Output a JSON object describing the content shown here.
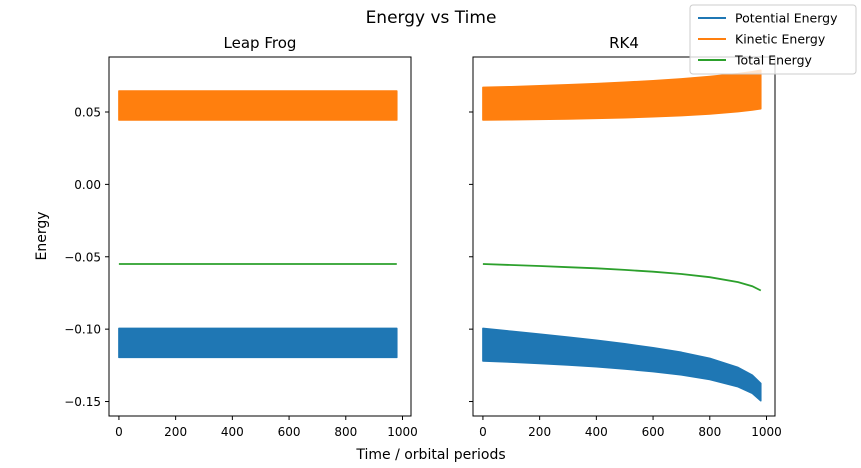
{
  "figure": {
    "suptitle": "Energy vs Time",
    "xlabel": "Time / orbital periods",
    "ylabel": "Energy"
  },
  "legend": {
    "placement": "top-right",
    "entries": [
      {
        "label": "Potential Energy",
        "color": "#1f77b4"
      },
      {
        "label": "Kinetic Energy",
        "color": "#ff7f0e"
      },
      {
        "label": "Total Energy",
        "color": "#2ca02c"
      }
    ]
  },
  "chart_data": [
    {
      "type": "area",
      "title": "Leap Frog",
      "xlabel": "",
      "ylabel": "Energy",
      "xlim": [
        -35,
        1030
      ],
      "ylim": [
        -0.16,
        0.088
      ],
      "xticks": [
        0,
        200,
        400,
        600,
        800,
        1000
      ],
      "xtick_labels": [
        "0",
        "200",
        "400",
        "600",
        "800",
        "1000"
      ],
      "yticks": [
        0.05,
        0.0,
        -0.05,
        -0.1,
        -0.15
      ],
      "ytick_labels": [
        "0.05",
        "0.00",
        "−0.05",
        "−0.10",
        "−0.15"
      ],
      "series": [
        {
          "name": "Kinetic Energy",
          "color": "#ff7f0e",
          "style": "band",
          "x": [
            0,
            980
          ],
          "upper": [
            0.0645,
            0.0645
          ],
          "lower": [
            0.0445,
            0.0445
          ]
        },
        {
          "name": "Total Energy",
          "color": "#2ca02c",
          "style": "line",
          "x": [
            0,
            980
          ],
          "y": [
            -0.055,
            -0.055
          ]
        },
        {
          "name": "Potential Energy",
          "color": "#1f77b4",
          "style": "band",
          "x": [
            0,
            980
          ],
          "upper": [
            -0.0995,
            -0.0995
          ],
          "lower": [
            -0.1195,
            -0.1195
          ]
        }
      ]
    },
    {
      "type": "area",
      "title": "RK4",
      "xlabel": "",
      "ylabel": "",
      "xlim": [
        -35,
        1030
      ],
      "ylim": [
        -0.16,
        0.088
      ],
      "xticks": [
        0,
        200,
        400,
        600,
        800,
        1000
      ],
      "xtick_labels": [
        "0",
        "200",
        "400",
        "600",
        "800",
        "1000"
      ],
      "yticks": [
        0.05,
        0.0,
        -0.05,
        -0.1,
        -0.15
      ],
      "ytick_labels": [],
      "series": [
        {
          "name": "Kinetic Energy",
          "color": "#ff7f0e",
          "style": "band",
          "x": [
            0,
            100,
            200,
            300,
            400,
            500,
            600,
            700,
            800,
            900,
            950,
            980
          ],
          "upper": [
            0.067,
            0.0675,
            0.0681,
            0.0688,
            0.0696,
            0.0705,
            0.0716,
            0.0729,
            0.0745,
            0.0765,
            0.0778,
            0.0788
          ],
          "lower": [
            0.0445,
            0.0447,
            0.0449,
            0.0452,
            0.0456,
            0.0461,
            0.0467,
            0.0475,
            0.0486,
            0.0503,
            0.0514,
            0.0522
          ]
        },
        {
          "name": "Total Energy",
          "color": "#2ca02c",
          "style": "line",
          "x": [
            0,
            100,
            200,
            300,
            400,
            500,
            600,
            700,
            800,
            900,
            950,
            980
          ],
          "y": [
            -0.055,
            -0.0557,
            -0.0564,
            -0.0572,
            -0.058,
            -0.0591,
            -0.0603,
            -0.0619,
            -0.0641,
            -0.0675,
            -0.0703,
            -0.0733
          ]
        },
        {
          "name": "Potential Energy",
          "color": "#1f77b4",
          "style": "band",
          "x": [
            0,
            100,
            200,
            300,
            400,
            500,
            600,
            700,
            800,
            900,
            950,
            980
          ],
          "upper": [
            -0.0995,
            -0.1015,
            -0.1034,
            -0.1055,
            -0.1077,
            -0.1101,
            -0.1128,
            -0.116,
            -0.1202,
            -0.1265,
            -0.1318,
            -0.1375
          ],
          "lower": [
            -0.122,
            -0.1228,
            -0.1237,
            -0.1248,
            -0.126,
            -0.1275,
            -0.1293,
            -0.1316,
            -0.1348,
            -0.1398,
            -0.1443,
            -0.1495
          ]
        }
      ]
    }
  ]
}
